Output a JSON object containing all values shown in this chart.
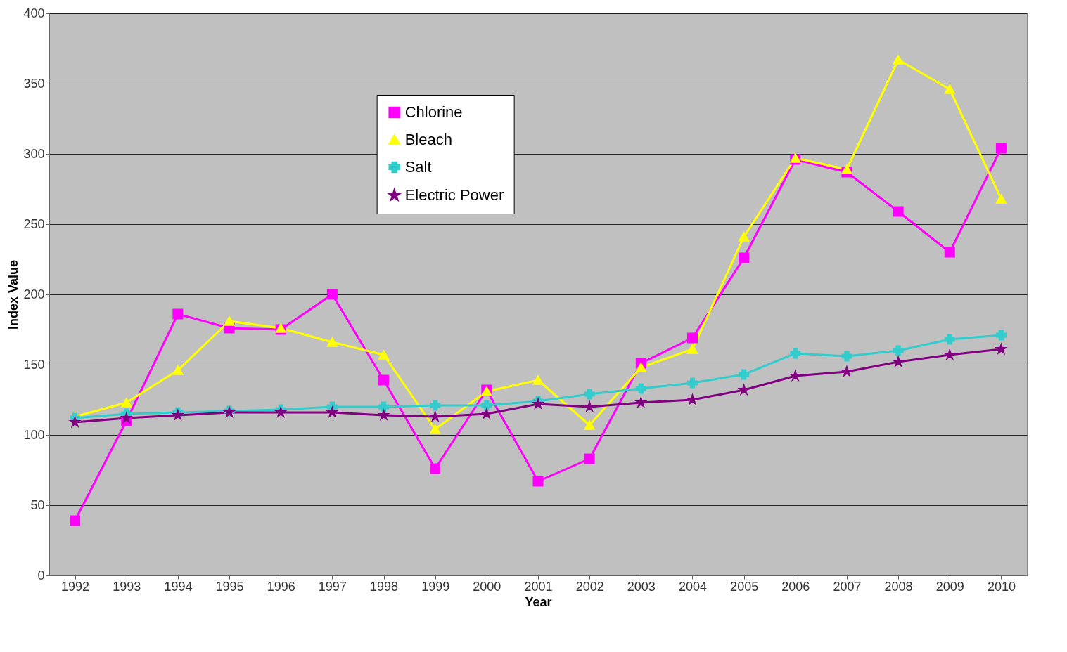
{
  "chart_data": {
    "type": "line",
    "xlabel": "Year",
    "ylabel": "Index Value",
    "categories": [
      "1992",
      "1993",
      "1994",
      "1995",
      "1996",
      "1997",
      "1998",
      "1999",
      "2000",
      "2001",
      "2002",
      "2003",
      "2004",
      "2005",
      "2006",
      "2007",
      "2008",
      "2009",
      "2010"
    ],
    "ylim": [
      0,
      400
    ],
    "yticks": [
      0,
      50,
      100,
      150,
      200,
      250,
      300,
      350,
      400
    ],
    "grid": "y",
    "legend": "top",
    "series": [
      {
        "name": "Chlorine",
        "color": "#ff00ff",
        "marker": "square",
        "values": [
          39,
          110,
          186,
          176,
          175,
          200,
          139,
          76,
          132,
          67,
          83,
          151,
          169,
          226,
          296,
          287,
          259,
          230,
          304
        ]
      },
      {
        "name": "Bleach",
        "color": "#ffff00",
        "marker": "triangle",
        "values": [
          113,
          123,
          146,
          181,
          176,
          166,
          157,
          104,
          131,
          139,
          107,
          148,
          161,
          241,
          297,
          289,
          367,
          346,
          268
        ]
      },
      {
        "name": "Salt",
        "color": "#33cccc",
        "marker": "cross",
        "values": [
          112,
          115,
          116,
          117,
          118,
          120,
          120,
          121,
          121,
          124,
          129,
          133,
          137,
          143,
          158,
          156,
          160,
          168,
          171
        ]
      },
      {
        "name": "Electric Power",
        "color": "#800080",
        "marker": "star",
        "values": [
          109,
          112,
          114,
          116,
          116,
          116,
          114,
          113,
          115,
          122,
          120,
          123,
          125,
          132,
          142,
          145,
          152,
          157,
          161
        ]
      }
    ]
  }
}
